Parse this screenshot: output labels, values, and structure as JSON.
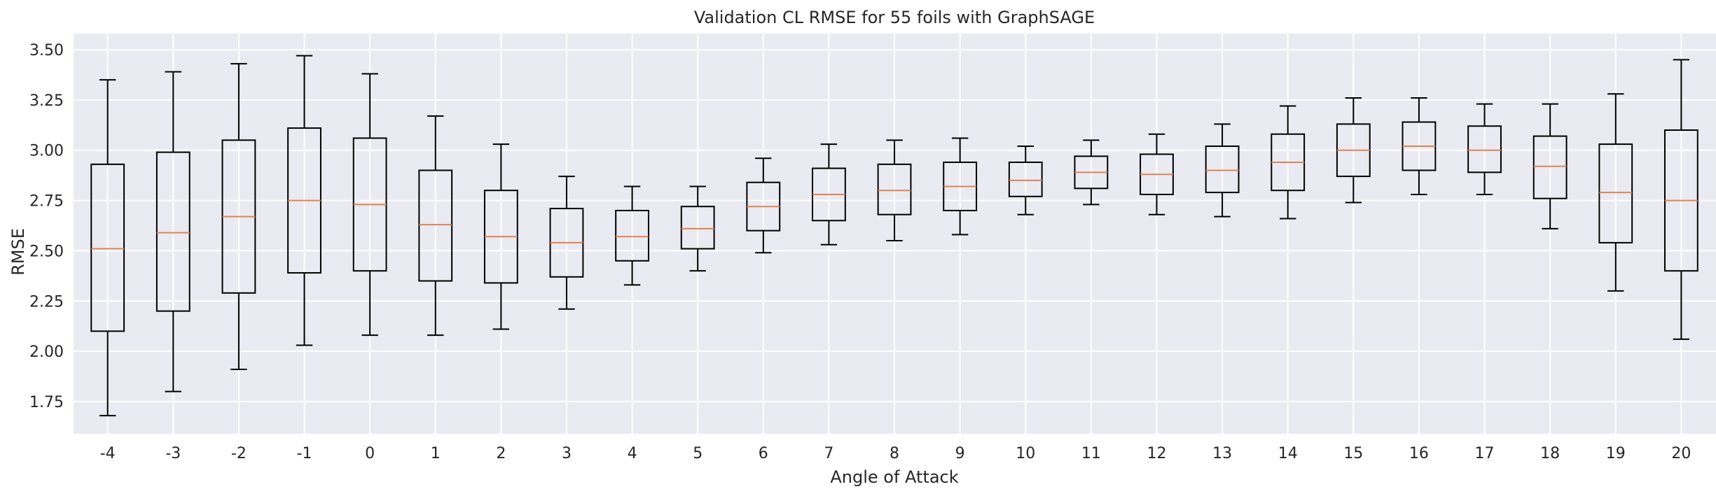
{
  "chart_data": {
    "type": "boxplot",
    "title": "Validation CL RMSE for 55 foils with GraphSAGE",
    "xlabel": "Angle of Attack",
    "ylabel": "RMSE",
    "ylim": [
      1.59,
      3.58
    ],
    "yticks": [
      "1.75",
      "2.00",
      "2.25",
      "2.50",
      "2.75",
      "3.00",
      "3.25",
      "3.50"
    ],
    "grid": true,
    "colors": {
      "background": "#eaeaf2",
      "grid": "#ffffff",
      "box": "#000000",
      "median": "#dd8452",
      "text": "#262626"
    },
    "boxes": [
      {
        "label": "-4",
        "whislo": 1.68,
        "q1": 2.1,
        "med": 2.51,
        "q3": 2.93,
        "whishi": 3.35
      },
      {
        "label": "-3",
        "whislo": 1.8,
        "q1": 2.2,
        "med": 2.59,
        "q3": 2.99,
        "whishi": 3.39
      },
      {
        "label": "-2",
        "whislo": 1.91,
        "q1": 2.29,
        "med": 2.67,
        "q3": 3.05,
        "whishi": 3.43
      },
      {
        "label": "-1",
        "whislo": 2.03,
        "q1": 2.39,
        "med": 2.75,
        "q3": 3.11,
        "whishi": 3.47
      },
      {
        "label": "0",
        "whislo": 2.08,
        "q1": 2.4,
        "med": 2.73,
        "q3": 3.06,
        "whishi": 3.38
      },
      {
        "label": "1",
        "whislo": 2.08,
        "q1": 2.35,
        "med": 2.63,
        "q3": 2.9,
        "whishi": 3.17
      },
      {
        "label": "2",
        "whislo": 2.11,
        "q1": 2.34,
        "med": 2.57,
        "q3": 2.8,
        "whishi": 3.03
      },
      {
        "label": "3",
        "whislo": 2.21,
        "q1": 2.37,
        "med": 2.54,
        "q3": 2.71,
        "whishi": 2.87
      },
      {
        "label": "4",
        "whislo": 2.33,
        "q1": 2.45,
        "med": 2.57,
        "q3": 2.7,
        "whishi": 2.82
      },
      {
        "label": "5",
        "whislo": 2.4,
        "q1": 2.51,
        "med": 2.61,
        "q3": 2.72,
        "whishi": 2.82
      },
      {
        "label": "6",
        "whislo": 2.49,
        "q1": 2.6,
        "med": 2.72,
        "q3": 2.84,
        "whishi": 2.96
      },
      {
        "label": "7",
        "whislo": 2.53,
        "q1": 2.65,
        "med": 2.78,
        "q3": 2.91,
        "whishi": 3.03
      },
      {
        "label": "8",
        "whislo": 2.55,
        "q1": 2.68,
        "med": 2.8,
        "q3": 2.93,
        "whishi": 3.05
      },
      {
        "label": "9",
        "whislo": 2.58,
        "q1": 2.7,
        "med": 2.82,
        "q3": 2.94,
        "whishi": 3.06
      },
      {
        "label": "10",
        "whislo": 2.68,
        "q1": 2.77,
        "med": 2.85,
        "q3": 2.94,
        "whishi": 3.02
      },
      {
        "label": "11",
        "whislo": 2.73,
        "q1": 2.81,
        "med": 2.89,
        "q3": 2.97,
        "whishi": 3.05
      },
      {
        "label": "12",
        "whislo": 2.68,
        "q1": 2.78,
        "med": 2.88,
        "q3": 2.98,
        "whishi": 3.08
      },
      {
        "label": "13",
        "whislo": 2.67,
        "q1": 2.79,
        "med": 2.9,
        "q3": 3.02,
        "whishi": 3.13
      },
      {
        "label": "14",
        "whislo": 2.66,
        "q1": 2.8,
        "med": 2.94,
        "q3": 3.08,
        "whishi": 3.22
      },
      {
        "label": "15",
        "whislo": 2.74,
        "q1": 2.87,
        "med": 3.0,
        "q3": 3.13,
        "whishi": 3.26
      },
      {
        "label": "16",
        "whislo": 2.78,
        "q1": 2.9,
        "med": 3.02,
        "q3": 3.14,
        "whishi": 3.26
      },
      {
        "label": "17",
        "whislo": 2.78,
        "q1": 2.89,
        "med": 3.0,
        "q3": 3.12,
        "whishi": 3.23
      },
      {
        "label": "18",
        "whislo": 2.61,
        "q1": 2.76,
        "med": 2.92,
        "q3": 3.07,
        "whishi": 3.23
      },
      {
        "label": "19",
        "whislo": 2.3,
        "q1": 2.54,
        "med": 2.79,
        "q3": 3.03,
        "whishi": 3.28
      },
      {
        "label": "20",
        "whislo": 2.06,
        "q1": 2.4,
        "med": 2.75,
        "q3": 3.1,
        "whishi": 3.45
      }
    ]
  }
}
